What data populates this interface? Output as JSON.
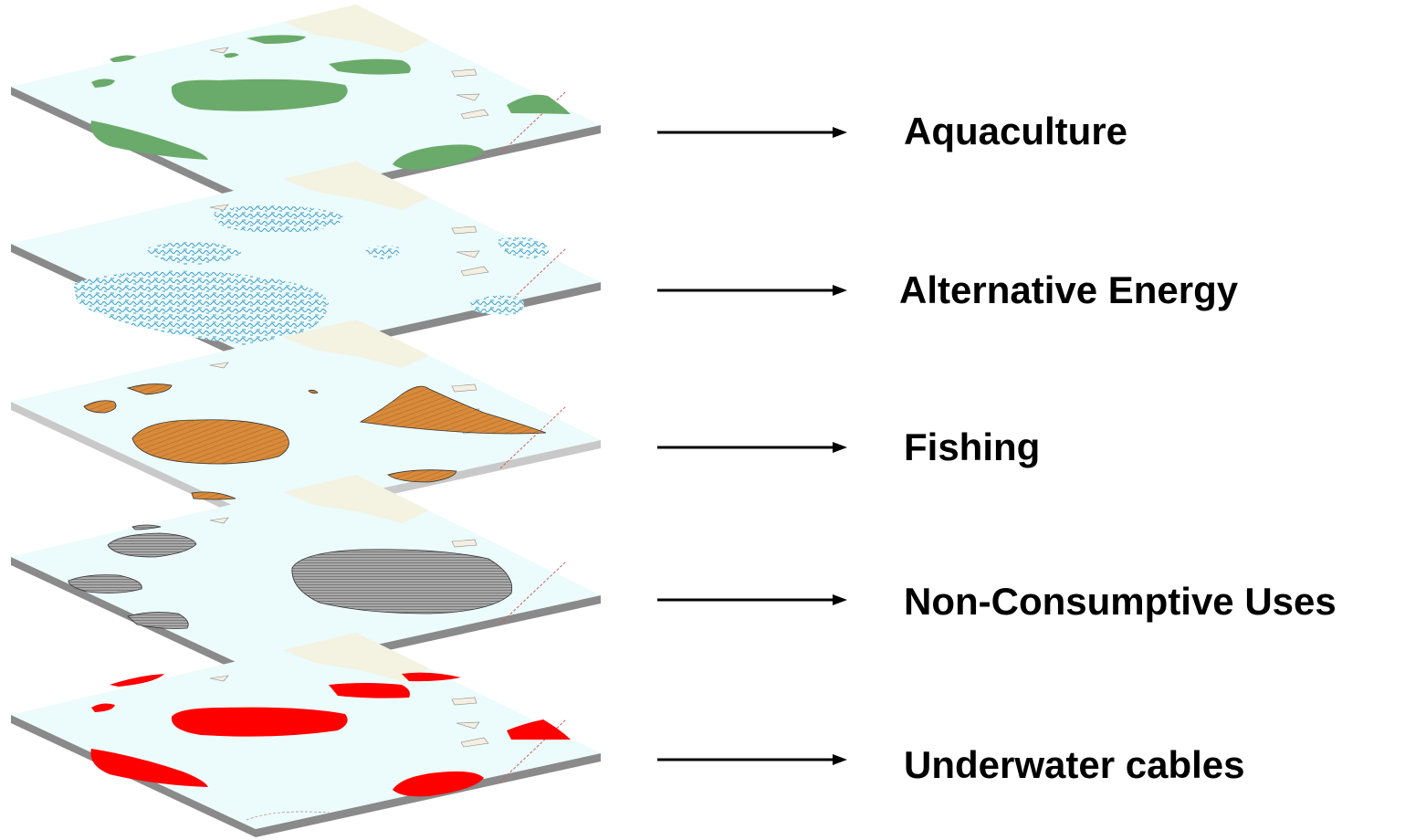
{
  "colors": {
    "sea": "#ecfbfb",
    "land": "#f4f2e0",
    "islet": "#f5efe2",
    "edge": "#8a8a8a",
    "edge_light": "#c9c9c9",
    "boundary": "#d06060",
    "arrow": "#000000"
  },
  "layers": [
    {
      "label": "Aquaculture",
      "color": "#6aaa6a",
      "pattern": "solid",
      "style": "aquaculture"
    },
    {
      "label": "Alternative Energy",
      "color": "#3a9ac8",
      "pattern": "squiggle",
      "style": "energy"
    },
    {
      "label": "Fishing",
      "color": "#d88a3a",
      "pattern": "hatch",
      "style": "fishing"
    },
    {
      "label": "Non-Consumptive Uses",
      "color": "#a8a8a8",
      "pattern": "hatch",
      "style": "nonconsumptive"
    },
    {
      "label": "Underwater cables",
      "color": "#ff0000",
      "pattern": "solid",
      "style": "cables"
    }
  ]
}
